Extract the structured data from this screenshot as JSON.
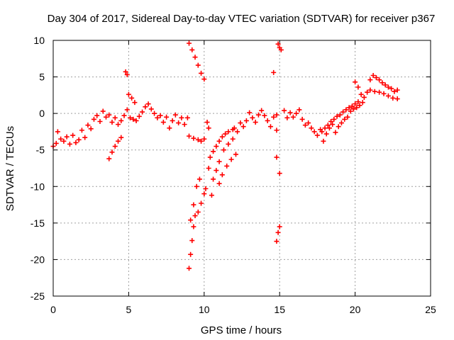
{
  "chart_data": {
    "type": "scatter",
    "title": "Day 304 of 2017, Sidereal Day-to-day VTEC variation (SDTVAR) for receiver p367",
    "xlabel": "GPS time / hours",
    "ylabel": "SDTVAR / TECUs",
    "xlim": [
      0,
      25
    ],
    "ylim": [
      -25,
      10
    ],
    "xticks": [
      "0",
      "5",
      "10",
      "15",
      "20",
      "25"
    ],
    "yticks": [
      "-25",
      "-20",
      "-15",
      "-10",
      "-5",
      "0",
      "5",
      "10"
    ],
    "grid": true,
    "marker": "+",
    "color": "#ff0000",
    "series": [
      {
        "values": [
          [
            0.0,
            -4.5
          ],
          [
            0.2,
            -4.1
          ],
          [
            0.3,
            -2.5
          ],
          [
            0.5,
            -3.5
          ],
          [
            0.7,
            -3.8
          ],
          [
            0.9,
            -3.2
          ],
          [
            1.1,
            -4.2
          ],
          [
            1.3,
            -3.0
          ],
          [
            1.5,
            -4.0
          ],
          [
            1.7,
            -3.6
          ],
          [
            1.9,
            -2.3
          ],
          [
            2.1,
            -3.3
          ],
          [
            2.3,
            -1.6
          ],
          [
            2.5,
            -2.1
          ],
          [
            2.7,
            -0.8
          ],
          [
            2.9,
            -0.3
          ],
          [
            3.1,
            -1.1
          ],
          [
            3.3,
            0.3
          ],
          [
            3.5,
            -0.5
          ],
          [
            3.7,
            -0.2
          ],
          [
            3.9,
            -1.2
          ],
          [
            4.1,
            -0.6
          ],
          [
            4.3,
            -1.5
          ],
          [
            4.5,
            -1.0
          ],
          [
            4.7,
            -0.3
          ],
          [
            4.9,
            0.5
          ],
          [
            5.1,
            -0.6
          ],
          [
            5.3,
            -0.8
          ],
          [
            5.5,
            -1.0
          ],
          [
            5.7,
            -0.4
          ],
          [
            5.9,
            0.2
          ],
          [
            6.1,
            0.9
          ],
          [
            6.3,
            1.3
          ],
          [
            6.5,
            0.6
          ],
          [
            6.7,
            0.0
          ],
          [
            6.9,
            -0.6
          ],
          [
            7.1,
            -0.3
          ],
          [
            7.3,
            -1.2
          ],
          [
            7.5,
            -0.5
          ],
          [
            7.7,
            -2.0
          ],
          [
            7.9,
            -1.0
          ],
          [
            8.1,
            -0.2
          ],
          [
            8.3,
            -1.3
          ],
          [
            8.5,
            -0.6
          ],
          [
            8.7,
            -1.5
          ],
          [
            8.9,
            -0.6
          ],
          [
            3.7,
            -6.2
          ],
          [
            3.9,
            -5.3
          ],
          [
            4.1,
            -4.5
          ],
          [
            4.3,
            -3.8
          ],
          [
            4.5,
            -3.3
          ],
          [
            4.8,
            5.7
          ],
          [
            4.9,
            5.3
          ],
          [
            5.0,
            2.6
          ],
          [
            5.2,
            2.1
          ],
          [
            5.4,
            1.5
          ],
          [
            9.0,
            9.6
          ],
          [
            9.2,
            8.7
          ],
          [
            9.4,
            7.7
          ],
          [
            9.6,
            6.6
          ],
          [
            9.8,
            5.5
          ],
          [
            10.0,
            4.7
          ],
          [
            9.0,
            -21.2
          ],
          [
            9.1,
            -19.3
          ],
          [
            9.2,
            -17.4
          ],
          [
            9.3,
            -15.5
          ],
          [
            9.4,
            -14.0
          ],
          [
            9.6,
            -13.5
          ],
          [
            9.8,
            -12.3
          ],
          [
            10.0,
            -11.0
          ],
          [
            10.1,
            -10.3
          ],
          [
            9.1,
            -14.6
          ],
          [
            9.3,
            -12.5
          ],
          [
            9.5,
            -10.0
          ],
          [
            9.7,
            -9.0
          ],
          [
            9.0,
            -3.1
          ],
          [
            9.3,
            -3.4
          ],
          [
            9.6,
            -3.6
          ],
          [
            9.8,
            -3.8
          ],
          [
            10.0,
            -3.5
          ],
          [
            10.2,
            -1.2
          ],
          [
            10.3,
            -2.0
          ],
          [
            10.3,
            -7.5
          ],
          [
            10.4,
            -6.0
          ],
          [
            10.6,
            -5.2
          ],
          [
            10.8,
            -4.5
          ],
          [
            11.0,
            -3.8
          ],
          [
            11.2,
            -3.2
          ],
          [
            11.4,
            -2.8
          ],
          [
            11.6,
            -2.5
          ],
          [
            11.9,
            -2.2
          ],
          [
            10.5,
            -11.2
          ],
          [
            10.6,
            -9.0
          ],
          [
            10.8,
            -7.8
          ],
          [
            11.0,
            -6.6
          ],
          [
            11.3,
            -5.0
          ],
          [
            11.6,
            -4.2
          ],
          [
            11.9,
            -3.5
          ],
          [
            11.0,
            -9.6
          ],
          [
            11.2,
            -8.4
          ],
          [
            11.5,
            -7.2
          ],
          [
            11.8,
            -6.3
          ],
          [
            12.1,
            -5.6
          ],
          [
            12.0,
            -2.0
          ],
          [
            12.2,
            -2.5
          ],
          [
            12.4,
            -1.3
          ],
          [
            12.6,
            -1.8
          ],
          [
            12.8,
            -1.0
          ],
          [
            13.0,
            0.1
          ],
          [
            13.2,
            -0.6
          ],
          [
            13.4,
            -1.2
          ],
          [
            13.6,
            -0.2
          ],
          [
            13.8,
            0.4
          ],
          [
            14.0,
            -0.3
          ],
          [
            14.2,
            -1.0
          ],
          [
            14.4,
            -1.8
          ],
          [
            14.6,
            -0.5
          ],
          [
            14.8,
            -0.2
          ],
          [
            14.8,
            -17.5
          ],
          [
            14.9,
            -16.3
          ],
          [
            15.0,
            -15.5
          ],
          [
            14.8,
            -6.0
          ],
          [
            15.0,
            -8.2
          ],
          [
            14.8,
            -2.3
          ],
          [
            14.6,
            5.6
          ],
          [
            14.9,
            9.5
          ],
          [
            15.0,
            9.0
          ],
          [
            15.1,
            8.7
          ],
          [
            15.3,
            0.4
          ],
          [
            15.5,
            -0.6
          ],
          [
            15.7,
            0.1
          ],
          [
            15.9,
            -0.5
          ],
          [
            16.1,
            0.0
          ],
          [
            16.3,
            0.5
          ],
          [
            16.5,
            -0.8
          ],
          [
            16.7,
            -1.6
          ],
          [
            16.9,
            -1.3
          ],
          [
            17.1,
            -2.0
          ],
          [
            17.3,
            -2.5
          ],
          [
            17.5,
            -3.0
          ],
          [
            17.7,
            -2.2
          ],
          [
            17.9,
            -3.8
          ],
          [
            18.1,
            -2.8
          ],
          [
            18.3,
            -2.0
          ],
          [
            18.5,
            -1.5
          ],
          [
            18.7,
            -2.6
          ],
          [
            18.9,
            -1.8
          ],
          [
            19.1,
            -1.3
          ],
          [
            19.3,
            -0.8
          ],
          [
            19.5,
            -0.5
          ],
          [
            19.7,
            0.3
          ],
          [
            19.9,
            0.6
          ],
          [
            20.1,
            0.8
          ],
          [
            20.3,
            1.1
          ],
          [
            20.5,
            1.5
          ],
          [
            17.8,
            -2.5
          ],
          [
            18.0,
            -2.0
          ],
          [
            18.2,
            -1.6
          ],
          [
            18.4,
            -1.1
          ],
          [
            18.6,
            -0.8
          ],
          [
            18.8,
            -0.4
          ],
          [
            19.0,
            -0.2
          ],
          [
            19.2,
            0.2
          ],
          [
            19.4,
            0.5
          ],
          [
            19.6,
            0.8
          ],
          [
            19.8,
            1.0
          ],
          [
            20.0,
            1.3
          ],
          [
            20.2,
            1.6
          ],
          [
            20.0,
            4.3
          ],
          [
            20.2,
            3.6
          ],
          [
            20.4,
            2.6
          ],
          [
            20.6,
            2.2
          ],
          [
            20.8,
            2.9
          ],
          [
            21.0,
            4.6
          ],
          [
            21.2,
            5.2
          ],
          [
            21.4,
            4.9
          ],
          [
            21.6,
            4.6
          ],
          [
            21.8,
            4.2
          ],
          [
            22.0,
            3.9
          ],
          [
            22.2,
            3.6
          ],
          [
            22.4,
            3.4
          ],
          [
            22.6,
            3.0
          ],
          [
            22.8,
            3.2
          ],
          [
            21.0,
            3.2
          ],
          [
            21.3,
            3.0
          ],
          [
            21.6,
            2.9
          ],
          [
            21.9,
            2.7
          ],
          [
            22.2,
            2.4
          ],
          [
            22.5,
            2.1
          ],
          [
            22.8,
            2.0
          ]
        ]
      }
    ]
  }
}
